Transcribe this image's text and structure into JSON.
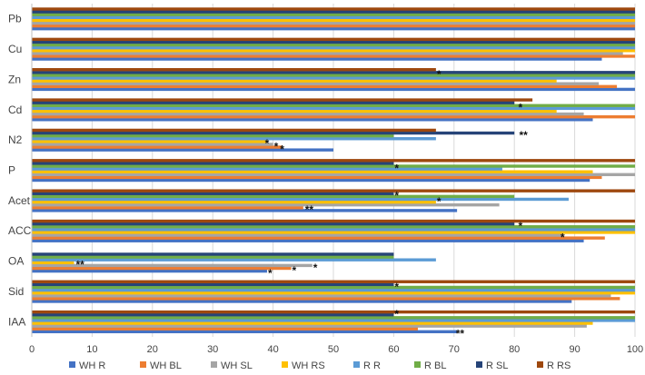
{
  "chart_data": {
    "type": "bar",
    "orientation": "horizontal",
    "categories": [
      "Pb",
      "Cu",
      "Zn",
      "Cd",
      "N2",
      "P",
      "Acet",
      "ACC",
      "OA",
      "Sid",
      "IAA"
    ],
    "xlim": [
      0,
      100
    ],
    "xticks": [
      "0",
      "10",
      "20",
      "30",
      "40",
      "50",
      "60",
      "70",
      "80",
      "90",
      "100"
    ],
    "grid": "vertical",
    "legend_position": "bottom",
    "series": [
      {
        "name": "WH R",
        "color": "#4472C4",
        "values": [
          100,
          94.5,
          100,
          93,
          50,
          92.5,
          70.5,
          91.5,
          39,
          89.5,
          70.5
        ]
      },
      {
        "name": "WH BL",
        "color": "#ED7D31",
        "values": [
          100,
          100,
          97,
          100,
          41.5,
          94.5,
          45,
          95,
          43,
          97.5,
          64
        ]
      },
      {
        "name": "WH SL",
        "color": "#A5A5A5",
        "values": [
          100,
          98,
          94,
          91.5,
          40,
          100,
          77.5,
          88,
          46.5,
          96,
          92
        ]
      },
      {
        "name": "WH RS",
        "color": "#FFC000",
        "values": [
          100,
          100,
          87,
          87,
          39,
          93,
          67,
          100,
          7,
          100,
          93
        ]
      },
      {
        "name": "R R",
        "color": "#5B9BD5",
        "values": [
          100,
          100,
          100,
          100,
          67,
          78,
          89,
          100,
          67,
          100,
          100
        ]
      },
      {
        "name": "R BL",
        "color": "#70AD47",
        "values": [
          100,
          100,
          100,
          100,
          60,
          100,
          80,
          100,
          60,
          100,
          100
        ]
      },
      {
        "name": "R SL",
        "color": "#264478",
        "values": [
          100,
          100,
          100,
          80,
          80,
          60,
          60,
          80,
          60,
          60,
          60
        ]
      },
      {
        "name": "R RS",
        "color": "#9E480E",
        "values": [
          100,
          100,
          67,
          83,
          67,
          100,
          100,
          100,
          0,
          100,
          100
        ]
      }
    ],
    "annotations": [
      {
        "category": "Zn",
        "series": "R SL",
        "text": "*",
        "x": 67.5
      },
      {
        "category": "Cd",
        "series": "R BL",
        "text": "*",
        "x": 81
      },
      {
        "category": "N2",
        "series": "R SL",
        "text": "**",
        "x": 81.5
      },
      {
        "category": "N2",
        "series": "WH RS",
        "text": "*",
        "x": 39
      },
      {
        "category": "N2",
        "series": "WH SL",
        "text": "*",
        "x": 40.5
      },
      {
        "category": "N2",
        "series": "WH BL",
        "text": "*",
        "x": 41.5
      },
      {
        "category": "P",
        "series": "R BL",
        "text": "*",
        "x": 60.5
      },
      {
        "category": "Acet",
        "series": "R SL",
        "text": "*",
        "x": 60.5
      },
      {
        "category": "Acet",
        "series": "R R",
        "text": "*",
        "x": 67.5
      },
      {
        "category": "Acet",
        "series": "WH BL",
        "text": "**",
        "x": 46
      },
      {
        "category": "ACC",
        "series": "R SL",
        "text": "*",
        "x": 81
      },
      {
        "category": "ACC",
        "series": "WH SL",
        "text": "*",
        "x": 88
      },
      {
        "category": "OA",
        "series": "WH RS",
        "text": "**",
        "x": 8
      },
      {
        "category": "OA",
        "series": "WH SL",
        "text": "*",
        "x": 47
      },
      {
        "category": "OA",
        "series": "WH BL",
        "text": "*",
        "x": 43.5
      },
      {
        "category": "OA",
        "series": "WH R",
        "text": "*",
        "x": 39.5
      },
      {
        "category": "Sid",
        "series": "R SL",
        "text": "*",
        "x": 60.5
      },
      {
        "category": "IAA",
        "series": "R RS",
        "text": "*",
        "x": 60.5
      },
      {
        "category": "IAA",
        "series": "WH R",
        "text": "**",
        "x": 71
      }
    ]
  }
}
